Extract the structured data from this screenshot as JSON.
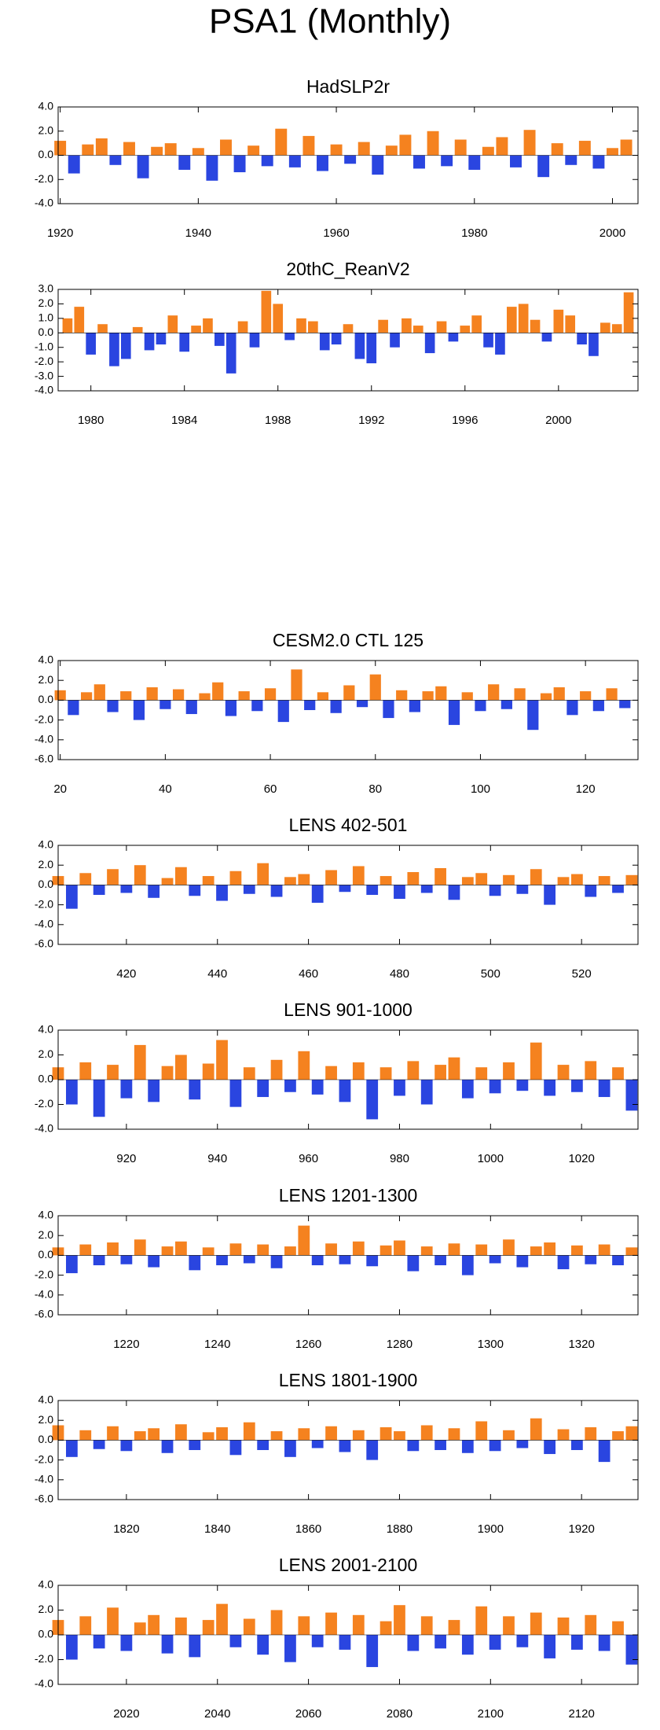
{
  "title": "PSA1 (Monthly)",
  "chart_data": [
    {
      "type": "bar",
      "title": "HadSLP2r",
      "colors": {
        "positive": "#f5821f",
        "negative": "#2a45e0"
      },
      "xlim": [
        1919.7,
        2003.7
      ],
      "xticks": [
        1920,
        1940,
        1960,
        1980,
        2000
      ],
      "ylim": [
        -4,
        4
      ],
      "yticks": [
        {
          "value": -4,
          "label": "-4.0"
        },
        {
          "value": -2,
          "label": "-2.0"
        },
        {
          "value": 0,
          "label": "0.0"
        },
        {
          "value": 2,
          "label": "2.0"
        },
        {
          "value": 4,
          "label": "4.0"
        }
      ],
      "x": [
        1920,
        1922,
        1924,
        1926,
        1928,
        1930,
        1932,
        1934,
        1936,
        1938,
        1940,
        1942,
        1944,
        1946,
        1948,
        1950,
        1952,
        1954,
        1956,
        1958,
        1960,
        1962,
        1964,
        1966,
        1968,
        1970,
        1972,
        1974,
        1976,
        1978,
        1980,
        1982,
        1984,
        1986,
        1988,
        1990,
        1992,
        1994,
        1996,
        1998,
        2000,
        2002
      ],
      "values": [
        1.2,
        -1.5,
        0.9,
        1.4,
        -0.8,
        1.1,
        -1.9,
        0.7,
        1.0,
        -1.2,
        0.6,
        -2.1,
        1.3,
        -1.4,
        0.8,
        -0.9,
        2.2,
        -1.0,
        1.6,
        -1.3,
        0.9,
        -0.7,
        1.1,
        -1.6,
        0.8,
        1.7,
        -1.1,
        2.0,
        -0.9,
        1.3,
        -1.2,
        0.7,
        1.5,
        -1.0,
        2.1,
        -1.8,
        1.0,
        -0.8,
        1.2,
        -1.1,
        0.6,
        1.3
      ]
    },
    {
      "type": "bar",
      "title": "20thC_ReanV2",
      "colors": {
        "positive": "#f5821f",
        "negative": "#2a45e0"
      },
      "xlim": [
        1978.6,
        2003.4
      ],
      "xticks": [
        1980,
        1984,
        1988,
        1992,
        1996,
        2000
      ],
      "ylim": [
        -4,
        3
      ],
      "yticks": [
        {
          "value": -4,
          "label": "-4.0"
        },
        {
          "value": -3,
          "label": "-3.0"
        },
        {
          "value": -2,
          "label": "-2.0"
        },
        {
          "value": -1,
          "label": "-1.0"
        },
        {
          "value": 0,
          "label": "0.0"
        },
        {
          "value": 1,
          "label": "1.0"
        },
        {
          "value": 2,
          "label": "2.0"
        },
        {
          "value": 3,
          "label": "3.0"
        }
      ],
      "x": [
        1979,
        1979.5,
        1980,
        1980.5,
        1981,
        1981.5,
        1982,
        1982.5,
        1983,
        1983.5,
        1984,
        1984.5,
        1985,
        1985.5,
        1986,
        1986.5,
        1987,
        1987.5,
        1988,
        1988.5,
        1989,
        1989.5,
        1990,
        1990.5,
        1991,
        1991.5,
        1992,
        1992.5,
        1993,
        1993.5,
        1994,
        1994.5,
        1995,
        1995.5,
        1996,
        1996.5,
        1997,
        1997.5,
        1998,
        1998.5,
        1999,
        1999.5,
        2000,
        2000.5,
        2001,
        2001.5,
        2002,
        2002.5,
        2003
      ],
      "values": [
        1.0,
        1.8,
        -1.5,
        0.6,
        -2.3,
        -1.8,
        0.4,
        -1.2,
        -0.8,
        1.2,
        -1.3,
        0.5,
        1.0,
        -0.9,
        -2.8,
        0.8,
        -1.0,
        2.9,
        2.0,
        -0.5,
        1.0,
        0.8,
        -1.2,
        -0.8,
        0.6,
        -1.8,
        -2.1,
        0.9,
        -1.0,
        1.0,
        0.5,
        -1.4,
        0.8,
        -0.6,
        0.5,
        1.2,
        -1.0,
        -1.5,
        1.8,
        2.0,
        0.9,
        -0.6,
        1.6,
        1.2,
        -0.8,
        -1.6,
        0.7,
        0.6,
        2.8
      ]
    },
    {
      "type": "bar",
      "title": "CESM2.0 CTL 125",
      "colors": {
        "positive": "#f5821f",
        "negative": "#2a45e0"
      },
      "xlim": [
        19.6,
        130
      ],
      "xticks": [
        20,
        40,
        60,
        80,
        100,
        120
      ],
      "ylim": [
        -6,
        4
      ],
      "yticks": [
        {
          "value": -6,
          "label": "-6.0"
        },
        {
          "value": -4,
          "label": "-4.0"
        },
        {
          "value": -2,
          "label": "-2.0"
        },
        {
          "value": 0,
          "label": "0.0"
        },
        {
          "value": 2,
          "label": "2.0"
        },
        {
          "value": 4,
          "label": "4.0"
        }
      ],
      "x": [
        20,
        22.5,
        25,
        27.5,
        30,
        32.5,
        35,
        37.5,
        40,
        42.5,
        45,
        47.5,
        50,
        52.5,
        55,
        57.5,
        60,
        62.5,
        65,
        67.5,
        70,
        72.5,
        75,
        77.5,
        80,
        82.5,
        85,
        87.5,
        90,
        92.5,
        95,
        97.5,
        100,
        102.5,
        105,
        107.5,
        110,
        112.5,
        115,
        117.5,
        120,
        122.5,
        125,
        127.5
      ],
      "values": [
        1.0,
        -1.5,
        0.8,
        1.6,
        -1.2,
        0.9,
        -2.0,
        1.3,
        -0.9,
        1.1,
        -1.4,
        0.7,
        1.8,
        -1.6,
        0.9,
        -1.1,
        1.2,
        -2.2,
        3.1,
        -1.0,
        0.8,
        -1.3,
        1.5,
        -0.7,
        2.6,
        -1.8,
        1.0,
        -1.2,
        0.9,
        1.4,
        -2.5,
        0.8,
        -1.1,
        1.6,
        -0.9,
        1.2,
        -3.0,
        0.7,
        1.3,
        -1.5,
        0.9,
        -1.1,
        1.2,
        -0.8
      ]
    },
    {
      "type": "bar",
      "title": "LENS 402-501",
      "colors": {
        "positive": "#f5821f",
        "negative": "#2a45e0"
      },
      "xlim": [
        405,
        532.4
      ],
      "xticks": [
        420,
        440,
        460,
        480,
        500,
        520
      ],
      "ylim": [
        -6,
        4
      ],
      "yticks": [
        {
          "value": -6,
          "label": "-6.0"
        },
        {
          "value": -4,
          "label": "-4.0"
        },
        {
          "value": -2,
          "label": "-2.0"
        },
        {
          "value": 0,
          "label": "0.0"
        },
        {
          "value": 2,
          "label": "2.0"
        },
        {
          "value": 4,
          "label": "4.0"
        }
      ],
      "x": [
        405,
        408,
        411,
        414,
        417,
        420,
        423,
        426,
        429,
        432,
        435,
        438,
        441,
        444,
        447,
        450,
        453,
        456,
        459,
        462,
        465,
        468,
        471,
        474,
        477,
        480,
        483,
        486,
        489,
        492,
        495,
        498,
        501,
        504,
        507,
        510,
        513,
        516,
        519,
        522,
        525,
        528,
        531
      ],
      "values": [
        0.9,
        -2.4,
        1.2,
        -1.0,
        1.6,
        -0.8,
        2.0,
        -1.3,
        0.7,
        1.8,
        -1.1,
        0.9,
        -1.6,
        1.4,
        -0.9,
        2.2,
        -1.2,
        0.8,
        1.1,
        -1.8,
        1.5,
        -0.7,
        1.9,
        -1.0,
        0.9,
        -1.4,
        1.3,
        -0.8,
        1.7,
        -1.5,
        0.8,
        1.2,
        -1.1,
        1.0,
        -0.9,
        1.6,
        -2.0,
        0.8,
        1.1,
        -1.2,
        0.9,
        -0.8,
        1.0
      ]
    },
    {
      "type": "bar",
      "title": "LENS 901-1000",
      "colors": {
        "positive": "#f5821f",
        "negative": "#2a45e0"
      },
      "xlim": [
        905,
        1032.4
      ],
      "xticks": [
        920,
        940,
        960,
        980,
        1000,
        1020
      ],
      "ylim": [
        -4,
        4
      ],
      "yticks": [
        {
          "value": -4,
          "label": "-4.0"
        },
        {
          "value": -2,
          "label": "-2.0"
        },
        {
          "value": 0,
          "label": "0.0"
        },
        {
          "value": 2,
          "label": "2.0"
        },
        {
          "value": 4,
          "label": "4.0"
        }
      ],
      "x": [
        905,
        908,
        911,
        914,
        917,
        920,
        923,
        926,
        929,
        932,
        935,
        938,
        941,
        944,
        947,
        950,
        953,
        956,
        959,
        962,
        965,
        968,
        971,
        974,
        977,
        980,
        983,
        986,
        989,
        992,
        995,
        998,
        1001,
        1004,
        1007,
        1010,
        1013,
        1016,
        1019,
        1022,
        1025,
        1028,
        1031
      ],
      "values": [
        1.0,
        -2.0,
        1.4,
        -3.0,
        1.2,
        -1.5,
        2.8,
        -1.8,
        1.1,
        2.0,
        -1.6,
        1.3,
        3.2,
        -2.2,
        1.0,
        -1.4,
        1.6,
        -1.0,
        2.3,
        -1.2,
        1.1,
        -1.8,
        1.4,
        -3.2,
        1.0,
        -1.3,
        1.5,
        -2.0,
        1.2,
        1.8,
        -1.5,
        1.0,
        -1.1,
        1.4,
        -0.9,
        3.0,
        -1.3,
        1.2,
        -1.0,
        1.5,
        -1.4,
        1.0,
        -2.5
      ]
    },
    {
      "type": "bar",
      "title": "LENS 1201-1300",
      "colors": {
        "positive": "#f5821f",
        "negative": "#2a45e0"
      },
      "xlim": [
        1205,
        1332.4
      ],
      "xticks": [
        1220,
        1240,
        1260,
        1280,
        1300,
        1320
      ],
      "ylim": [
        -6,
        4
      ],
      "yticks": [
        {
          "value": -6,
          "label": "-6.0"
        },
        {
          "value": -4,
          "label": "-4.0"
        },
        {
          "value": -2,
          "label": "-2.0"
        },
        {
          "value": 0,
          "label": "0.0"
        },
        {
          "value": 2,
          "label": "2.0"
        },
        {
          "value": 4,
          "label": "4.0"
        }
      ],
      "x": [
        1205,
        1208,
        1211,
        1214,
        1217,
        1220,
        1223,
        1226,
        1229,
        1232,
        1235,
        1238,
        1241,
        1244,
        1247,
        1250,
        1253,
        1256,
        1259,
        1262,
        1265,
        1268,
        1271,
        1274,
        1277,
        1280,
        1283,
        1286,
        1289,
        1292,
        1295,
        1298,
        1301,
        1304,
        1307,
        1310,
        1313,
        1316,
        1319,
        1322,
        1325,
        1328,
        1331
      ],
      "values": [
        0.8,
        -1.8,
        1.1,
        -1.0,
        1.3,
        -0.9,
        1.6,
        -1.2,
        0.9,
        1.4,
        -1.5,
        0.8,
        -1.0,
        1.2,
        -0.8,
        1.1,
        -1.3,
        0.9,
        3.0,
        -1.0,
        1.2,
        -0.9,
        1.4,
        -1.1,
        1.0,
        1.5,
        -1.6,
        0.9,
        -1.0,
        1.2,
        -2.0,
        1.1,
        -0.8,
        1.6,
        -1.2,
        0.9,
        1.3,
        -1.4,
        1.0,
        -0.9,
        1.1,
        -1.0,
        0.8
      ]
    },
    {
      "type": "bar",
      "title": "LENS 1801-1900",
      "colors": {
        "positive": "#f5821f",
        "negative": "#2a45e0"
      },
      "xlim": [
        1805,
        1932.4
      ],
      "xticks": [
        1820,
        1840,
        1860,
        1880,
        1900,
        1920
      ],
      "ylim": [
        -6,
        4
      ],
      "yticks": [
        {
          "value": -6,
          "label": "-6.0"
        },
        {
          "value": -4,
          "label": "-4.0"
        },
        {
          "value": -2,
          "label": "-2.0"
        },
        {
          "value": 0,
          "label": "0.0"
        },
        {
          "value": 2,
          "label": "2.0"
        },
        {
          "value": 4,
          "label": "4.0"
        }
      ],
      "x": [
        1805,
        1808,
        1811,
        1814,
        1817,
        1820,
        1823,
        1826,
        1829,
        1832,
        1835,
        1838,
        1841,
        1844,
        1847,
        1850,
        1853,
        1856,
        1859,
        1862,
        1865,
        1868,
        1871,
        1874,
        1877,
        1880,
        1883,
        1886,
        1889,
        1892,
        1895,
        1898,
        1901,
        1904,
        1907,
        1910,
        1913,
        1916,
        1919,
        1922,
        1925,
        1928,
        1931
      ],
      "values": [
        1.5,
        -1.7,
        1.0,
        -0.9,
        1.4,
        -1.1,
        0.9,
        1.2,
        -1.3,
        1.6,
        -1.0,
        0.8,
        1.3,
        -1.5,
        1.8,
        -1.0,
        0.9,
        -1.7,
        1.2,
        -0.8,
        1.4,
        -1.2,
        1.0,
        -2.0,
        1.3,
        0.9,
        -1.1,
        1.5,
        -1.0,
        1.2,
        -1.3,
        1.9,
        -1.1,
        1.0,
        -0.8,
        2.2,
        -1.4,
        1.1,
        -1.0,
        1.3,
        -2.2,
        0.9,
        1.4
      ]
    },
    {
      "type": "bar",
      "title": "LENS 2001-2100",
      "colors": {
        "positive": "#f5821f",
        "negative": "#2a45e0"
      },
      "xlim": [
        2005,
        2132.4
      ],
      "xticks": [
        2020,
        2040,
        2060,
        2080,
        2100,
        2120
      ],
      "ylim": [
        -4,
        4
      ],
      "yticks": [
        {
          "value": -4,
          "label": "-4.0"
        },
        {
          "value": -2,
          "label": "-2.0"
        },
        {
          "value": 0,
          "label": "0.0"
        },
        {
          "value": 2,
          "label": "2.0"
        },
        {
          "value": 4,
          "label": "4.0"
        }
      ],
      "x": [
        2005,
        2008,
        2011,
        2014,
        2017,
        2020,
        2023,
        2026,
        2029,
        2032,
        2035,
        2038,
        2041,
        2044,
        2047,
        2050,
        2053,
        2056,
        2059,
        2062,
        2065,
        2068,
        2071,
        2074,
        2077,
        2080,
        2083,
        2086,
        2089,
        2092,
        2095,
        2098,
        2101,
        2104,
        2107,
        2110,
        2113,
        2116,
        2119,
        2122,
        2125,
        2128,
        2131
      ],
      "values": [
        1.2,
        -2.0,
        1.5,
        -1.1,
        2.2,
        -1.3,
        1.0,
        1.6,
        -1.5,
        1.4,
        -1.8,
        1.2,
        2.5,
        -1.0,
        1.3,
        -1.6,
        2.0,
        -2.2,
        1.5,
        -1.0,
        1.8,
        -1.2,
        1.6,
        -2.6,
        1.1,
        2.4,
        -1.3,
        1.5,
        -1.1,
        1.2,
        -1.6,
        2.3,
        -1.2,
        1.5,
        -1.0,
        1.8,
        -1.9,
        1.4,
        -1.2,
        1.6,
        -1.3,
        1.1,
        -2.4
      ]
    }
  ]
}
